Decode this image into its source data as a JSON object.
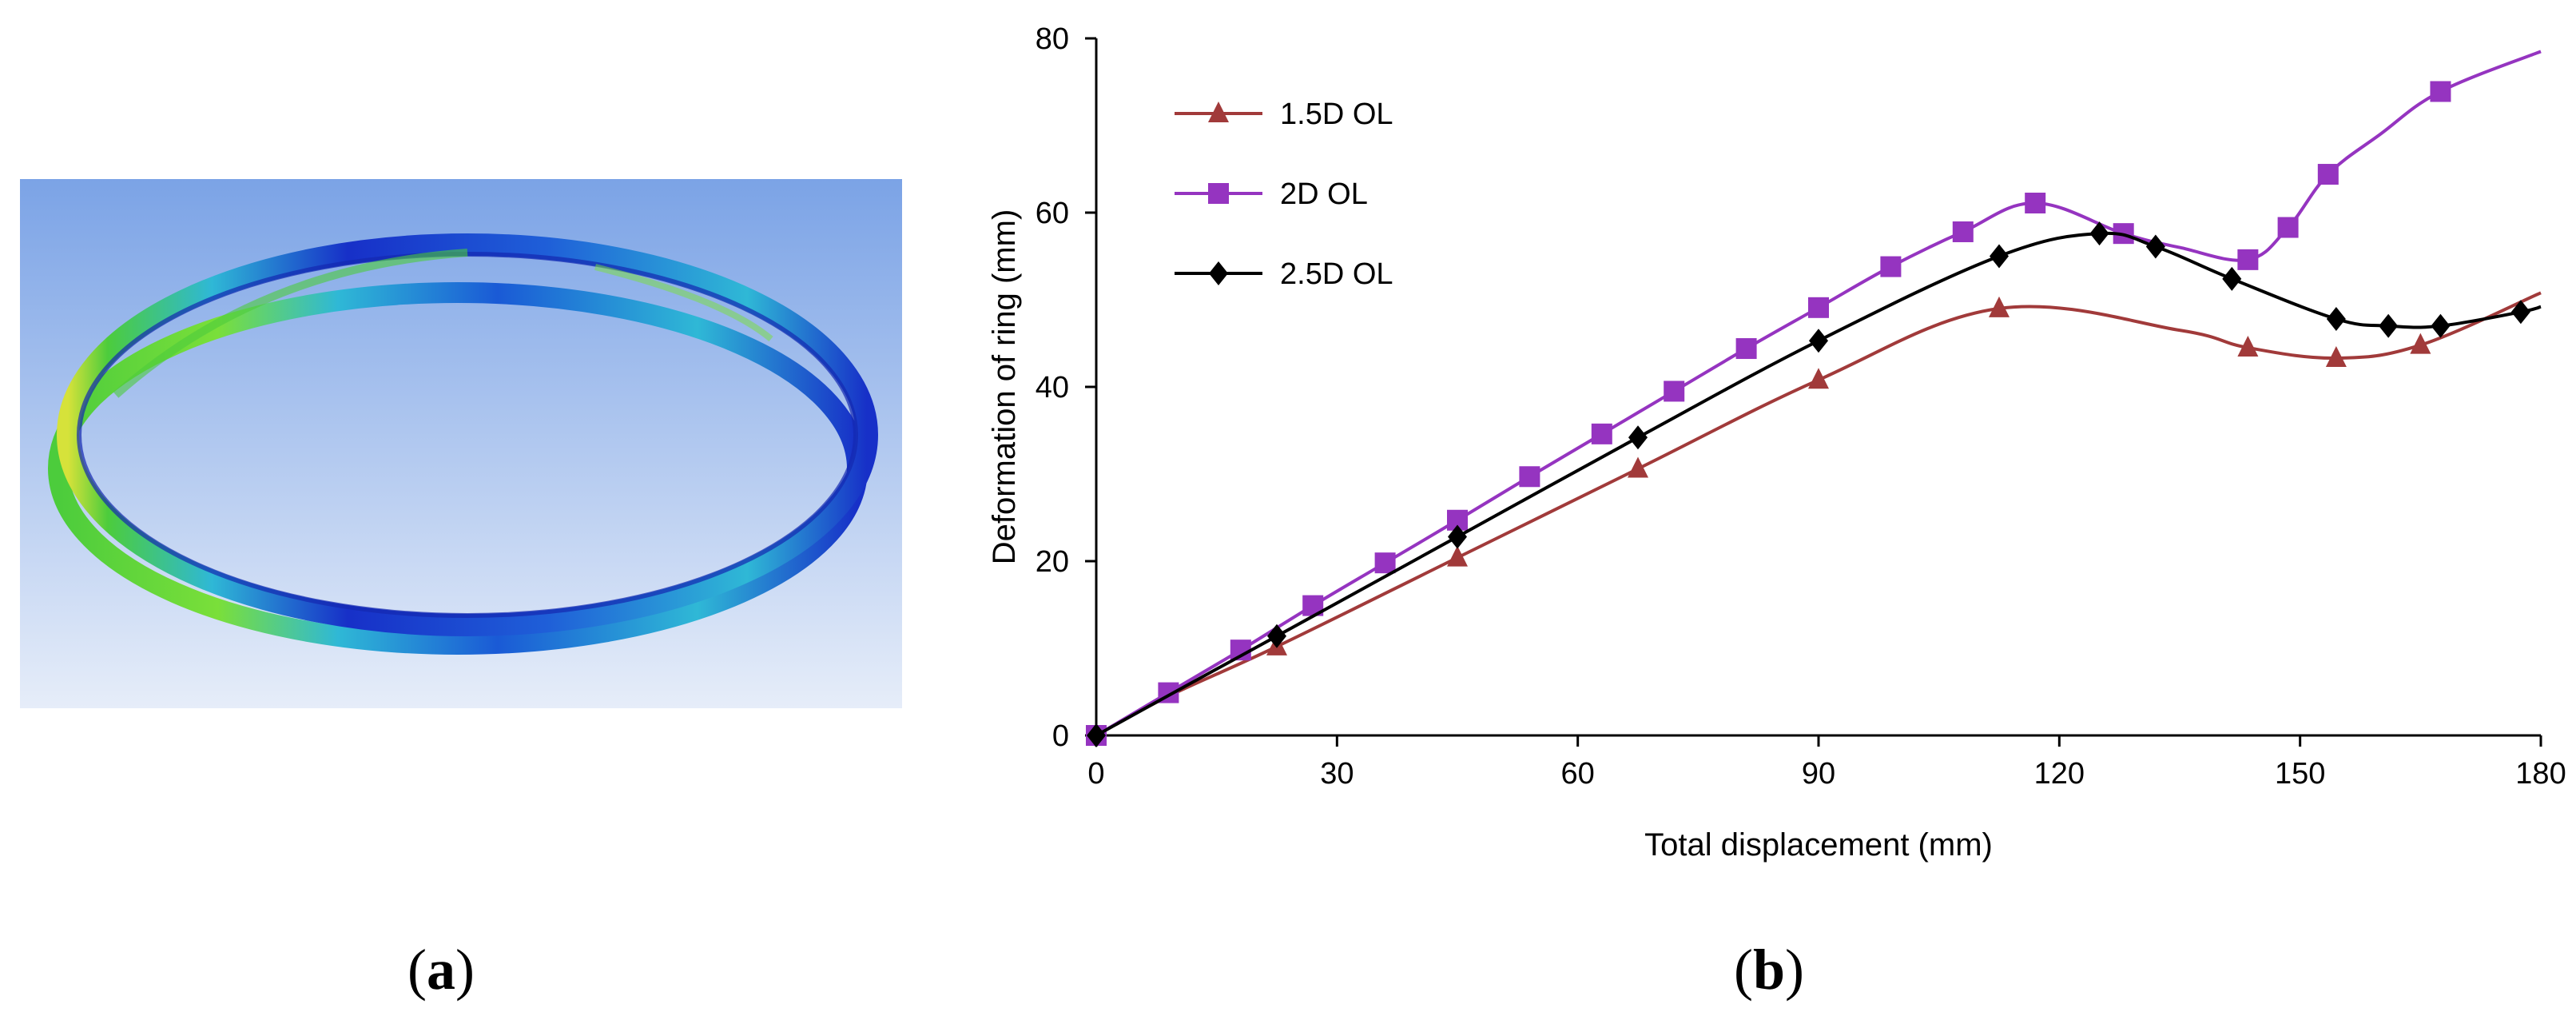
{
  "panel_a": {
    "caption_open": "(",
    "caption_letter": "a",
    "caption_close": ")",
    "image_alt": "3D finite-element deformation contour of a steel ring",
    "colors": {
      "bg_top": "#7ba3e6",
      "bg_bottom": "#e6edf9",
      "ring_blue": "#1730c8",
      "ring_cyan": "#2fb8d6",
      "ring_green": "#4ccc3c",
      "ring_yellow": "#d6e23a"
    }
  },
  "panel_b": {
    "caption_open": "(",
    "caption_letter": "b",
    "caption_close": ")"
  },
  "chart_data": {
    "type": "line",
    "title": "",
    "xlabel": "Total displacement (mm)",
    "ylabel": "Deformation of ring (mm)",
    "xlim": [
      0,
      180
    ],
    "ylim": [
      0,
      80
    ],
    "xticks": [
      "0",
      "30",
      "60",
      "90",
      "120",
      "150",
      "180"
    ],
    "yticks": [
      "0",
      "20",
      "40",
      "60",
      "80"
    ],
    "grid": false,
    "legend_position": "top-left",
    "series": [
      {
        "name": "1.5D OL",
        "color": "#a13a3a",
        "marker": "triangle",
        "x": [
          0,
          9,
          22.5,
          45,
          67.5,
          90,
          112.5,
          135,
          143.5,
          154.5,
          165,
          180
        ],
        "y": [
          0,
          4.5,
          10.2,
          20.4,
          30.6,
          40.8,
          49,
          46.5,
          44.5,
          43.3,
          44.8,
          50.8
        ],
        "marker_x": [
          0,
          22.5,
          45,
          67.5,
          90,
          112.5,
          143.5,
          154.5,
          165
        ]
      },
      {
        "name": "2D OL",
        "color": "#9534c0",
        "marker": "square",
        "x": [
          0,
          9,
          18,
          27,
          36,
          45,
          54,
          63,
          72,
          81,
          90,
          99,
          108,
          117,
          128,
          135,
          143.5,
          148.5,
          153.5,
          160,
          167.5,
          180
        ],
        "y": [
          0,
          4.9,
          9.8,
          14.9,
          19.8,
          24.7,
          29.7,
          34.6,
          39.5,
          44.4,
          49.1,
          53.8,
          57.8,
          61.1,
          57.6,
          56,
          54.6,
          58.3,
          64.4,
          69,
          73.9,
          78.5
        ],
        "marker_x": [
          0,
          9,
          18,
          27,
          36,
          45,
          54,
          63,
          72,
          81,
          90,
          99,
          108,
          117,
          128,
          143.5,
          148.5,
          153.5,
          167.5
        ]
      },
      {
        "name": "2.5D OL",
        "color": "#000000",
        "marker": "diamond",
        "x": [
          0,
          11,
          22.5,
          45,
          67.5,
          90,
          112.5,
          125,
          132,
          141.5,
          154.5,
          161,
          167.5,
          177.5,
          180
        ],
        "y": [
          0,
          5.6,
          11.4,
          22.8,
          34.2,
          45.3,
          55,
          57.6,
          56.1,
          52.4,
          47.8,
          47,
          47,
          48.6,
          49.2
        ],
        "marker_x": [
          0,
          22.5,
          45,
          67.5,
          90,
          112.5,
          125,
          132,
          141.5,
          154.5,
          161,
          167.5,
          177.5
        ]
      }
    ]
  }
}
